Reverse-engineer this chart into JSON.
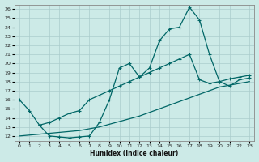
{
  "xlabel": "Humidex (Indice chaleur)",
  "bg_color": "#cceae7",
  "line_color": "#006666",
  "grid_color": "#aacccc",
  "xlim": [
    -0.5,
    23.5
  ],
  "ylim": [
    11.5,
    26.5
  ],
  "xticks": [
    0,
    1,
    2,
    3,
    4,
    5,
    6,
    7,
    8,
    9,
    10,
    11,
    12,
    13,
    14,
    15,
    16,
    17,
    18,
    19,
    20,
    21,
    22,
    23
  ],
  "yticks": [
    12,
    13,
    14,
    15,
    16,
    17,
    18,
    19,
    20,
    21,
    22,
    23,
    24,
    25,
    26
  ],
  "line1_x": [
    0,
    1,
    2,
    3,
    4,
    5,
    6,
    7,
    8,
    9,
    10,
    11,
    12,
    13,
    14,
    15,
    16,
    17,
    18,
    19,
    20,
    21,
    22,
    23
  ],
  "line1_y": [
    16.0,
    14.8,
    13.2,
    12.0,
    11.9,
    11.8,
    11.9,
    12.0,
    13.5,
    16.0,
    19.5,
    20.0,
    18.5,
    19.5,
    22.5,
    23.8,
    24.0,
    26.2,
    24.8,
    21.0,
    18.0,
    17.5,
    18.2,
    18.4
  ],
  "line2_x": [
    2,
    3,
    4,
    5,
    6,
    7,
    8,
    9,
    10,
    11,
    12,
    13,
    14,
    15,
    16,
    17,
    18,
    19,
    20,
    21,
    22,
    23
  ],
  "line2_y": [
    13.2,
    13.5,
    14.0,
    14.5,
    14.8,
    16.0,
    16.5,
    17.0,
    17.5,
    18.0,
    18.5,
    19.0,
    19.5,
    20.0,
    20.5,
    21.0,
    18.2,
    17.8,
    18.0,
    18.3,
    18.5,
    18.7
  ],
  "line3_x": [
    0,
    1,
    2,
    3,
    4,
    5,
    6,
    7,
    8,
    9,
    10,
    11,
    12,
    13,
    14,
    15,
    16,
    17,
    18,
    19,
    20,
    21,
    22,
    23
  ],
  "line3_y": [
    12.0,
    12.1,
    12.2,
    12.3,
    12.4,
    12.5,
    12.6,
    12.8,
    13.0,
    13.3,
    13.6,
    13.9,
    14.2,
    14.6,
    15.0,
    15.4,
    15.8,
    16.2,
    16.6,
    17.0,
    17.4,
    17.6,
    17.8,
    18.0
  ]
}
